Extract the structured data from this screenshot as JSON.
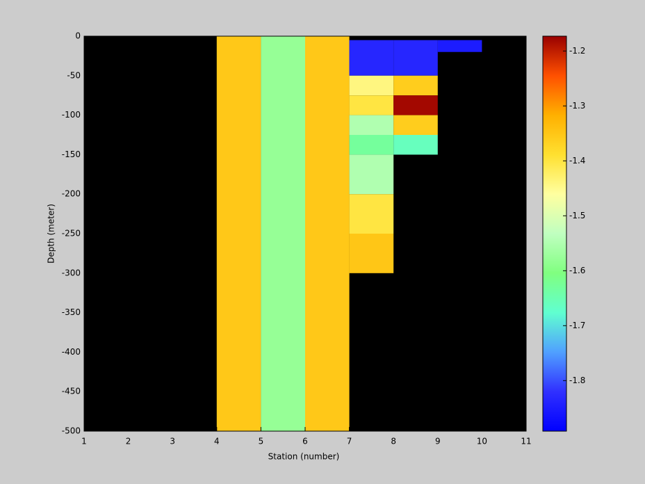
{
  "chart_data": {
    "type": "heatmap",
    "xlabel": "Station (number)",
    "ylabel": "Depth (meter)",
    "xlim": [
      1,
      11
    ],
    "xticks": [
      1,
      2,
      3,
      4,
      5,
      6,
      7,
      8,
      9,
      10,
      11
    ],
    "ylim": [
      -500,
      0
    ],
    "yticks": [
      0,
      -50,
      -100,
      -150,
      -200,
      -250,
      -300,
      -350,
      -400,
      -450,
      -500
    ],
    "background": "#000000",
    "clim": [
      -1.892,
      -1.173
    ],
    "cticks": [
      -1.2,
      -1.3,
      -1.4,
      -1.5,
      -1.6,
      -1.7,
      -1.8
    ],
    "colormap": [
      "#0000ff",
      "#3030ff",
      "#50a0ff",
      "#60ffd0",
      "#80ff80",
      "#c0ffc0",
      "#ffffa0",
      "#ffe030",
      "#ffb000",
      "#ff5000",
      "#990000"
    ],
    "cells": [
      {
        "x": [
          4,
          5
        ],
        "depth": [
          0,
          -500
        ],
        "value": -1.353
      },
      {
        "x": [
          5,
          6
        ],
        "depth": [
          0,
          -500
        ],
        "value": -1.58
      },
      {
        "x": [
          6,
          7
        ],
        "depth": [
          0,
          -500
        ],
        "value": -1.353
      },
      {
        "x": [
          7,
          8
        ],
        "depth": [
          -5,
          -50
        ],
        "value": -1.835
      },
      {
        "x": [
          7,
          8
        ],
        "depth": [
          -50,
          -75
        ],
        "value": -1.44
      },
      {
        "x": [
          7,
          8
        ],
        "depth": [
          -75,
          -100
        ],
        "value": -1.4
      },
      {
        "x": [
          7,
          8
        ],
        "depth": [
          -100,
          -125
        ],
        "value": -1.55
      },
      {
        "x": [
          7,
          8
        ],
        "depth": [
          -125,
          -150
        ],
        "value": -1.63
      },
      {
        "x": [
          7,
          8
        ],
        "depth": [
          -150,
          -200
        ],
        "value": -1.55
      },
      {
        "x": [
          7,
          8
        ],
        "depth": [
          -200,
          -250
        ],
        "value": -1.4
      },
      {
        "x": [
          7,
          8
        ],
        "depth": [
          -250,
          -300
        ],
        "value": -1.35
      },
      {
        "x": [
          8,
          9
        ],
        "depth": [
          -5,
          -50
        ],
        "value": -1.835
      },
      {
        "x": [
          8,
          9
        ],
        "depth": [
          -50,
          -75
        ],
        "value": -1.36
      },
      {
        "x": [
          8,
          9
        ],
        "depth": [
          -75,
          -100
        ],
        "value": -1.18
      },
      {
        "x": [
          8,
          9
        ],
        "depth": [
          -100,
          -125
        ],
        "value": -1.36
      },
      {
        "x": [
          8,
          9
        ],
        "depth": [
          -125,
          -150
        ],
        "value": -1.66
      },
      {
        "x": [
          9,
          10
        ],
        "depth": [
          -5,
          -20
        ],
        "value": -1.85
      }
    ]
  }
}
